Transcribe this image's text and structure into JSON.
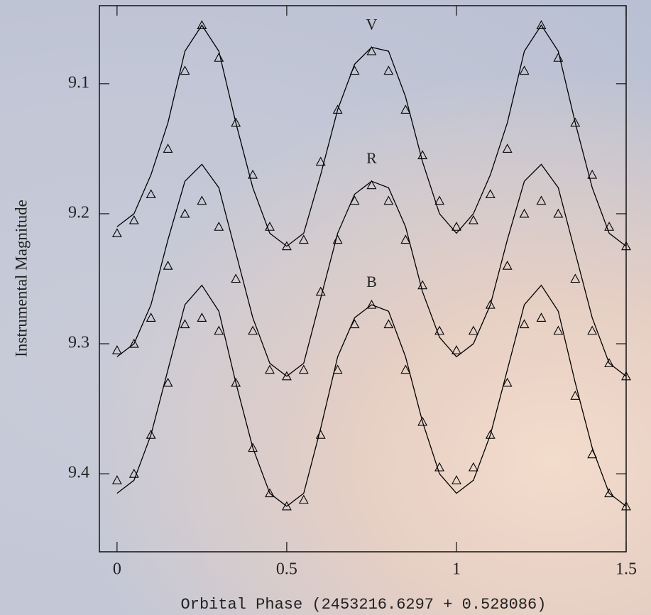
{
  "chart_data": {
    "type": "scatter",
    "x_label": "Orbital Phase (2453216.6297 + 0.528086)",
    "y_label": "Instrumental Magnitude",
    "x": [
      0,
      0.05,
      0.1,
      0.15,
      0.2,
      0.25,
      0.3,
      0.35,
      0.4,
      0.45,
      0.5,
      0.55,
      0.6,
      0.65,
      0.7,
      0.75,
      0.8,
      0.85,
      0.9,
      0.95,
      1,
      1.05,
      1.1,
      1.15,
      1.2,
      1.25,
      1.3,
      1.35,
      1.4,
      1.45,
      1.5
    ],
    "series": [
      {
        "name": "V",
        "color": "#000000",
        "values": [
          9.215,
          9.205,
          9.185,
          9.15,
          9.09,
          9.055,
          9.08,
          9.13,
          9.17,
          9.21,
          9.225,
          9.22,
          9.16,
          9.12,
          9.09,
          9.075,
          9.09,
          9.12,
          9.155,
          9.19,
          9.21,
          9.205,
          9.185,
          9.15,
          9.09,
          9.055,
          9.08,
          9.13,
          9.17,
          9.21,
          9.225
        ],
        "model": [
          9.21,
          9.2,
          9.17,
          9.13,
          9.075,
          9.055,
          9.075,
          9.13,
          9.18,
          9.215,
          9.225,
          9.215,
          9.17,
          9.12,
          9.085,
          9.072,
          9.075,
          9.11,
          9.16,
          9.2,
          9.215,
          9.2,
          9.17,
          9.13,
          9.075,
          9.055,
          9.075,
          9.13,
          9.18,
          9.215,
          9.225
        ]
      },
      {
        "name": "R",
        "color": "#000000",
        "values": [
          9.305,
          9.3,
          9.28,
          9.24,
          9.2,
          9.19,
          9.21,
          9.25,
          9.29,
          9.32,
          9.325,
          9.32,
          9.26,
          9.22,
          9.19,
          9.178,
          9.19,
          9.22,
          9.255,
          9.29,
          9.305,
          9.29,
          9.27,
          9.24,
          9.2,
          9.19,
          9.2,
          9.25,
          9.29,
          9.315,
          9.325
        ],
        "model": [
          9.31,
          9.3,
          9.27,
          9.22,
          9.175,
          9.162,
          9.18,
          9.23,
          9.28,
          9.315,
          9.325,
          9.315,
          9.265,
          9.215,
          9.185,
          9.175,
          9.18,
          9.21,
          9.26,
          9.295,
          9.31,
          9.3,
          9.27,
          9.22,
          9.175,
          9.162,
          9.18,
          9.23,
          9.28,
          9.315,
          9.325
        ]
      },
      {
        "name": "B",
        "color": "#000000",
        "values": [
          9.405,
          9.4,
          9.37,
          9.33,
          9.285,
          9.28,
          9.29,
          9.33,
          9.38,
          9.415,
          9.425,
          9.42,
          9.37,
          9.32,
          9.285,
          9.27,
          9.285,
          9.32,
          9.36,
          9.395,
          9.405,
          9.395,
          9.37,
          9.33,
          9.285,
          9.28,
          9.29,
          9.34,
          9.385,
          9.415,
          9.425
        ],
        "model": [
          9.415,
          9.405,
          9.37,
          9.32,
          9.27,
          9.255,
          9.275,
          9.33,
          9.38,
          9.415,
          9.425,
          9.415,
          9.365,
          9.31,
          9.28,
          9.27,
          9.275,
          9.31,
          9.36,
          9.4,
          9.415,
          9.405,
          9.37,
          9.32,
          9.27,
          9.255,
          9.275,
          9.33,
          9.38,
          9.415,
          9.425
        ]
      }
    ],
    "xlim": [
      -0.052,
      1.5
    ],
    "xticks": [
      0,
      0.5,
      1,
      1.5
    ],
    "ylim": [
      9.46,
      9.04
    ],
    "yticks": [
      9.1,
      9.2,
      9.3,
      9.4
    ]
  }
}
